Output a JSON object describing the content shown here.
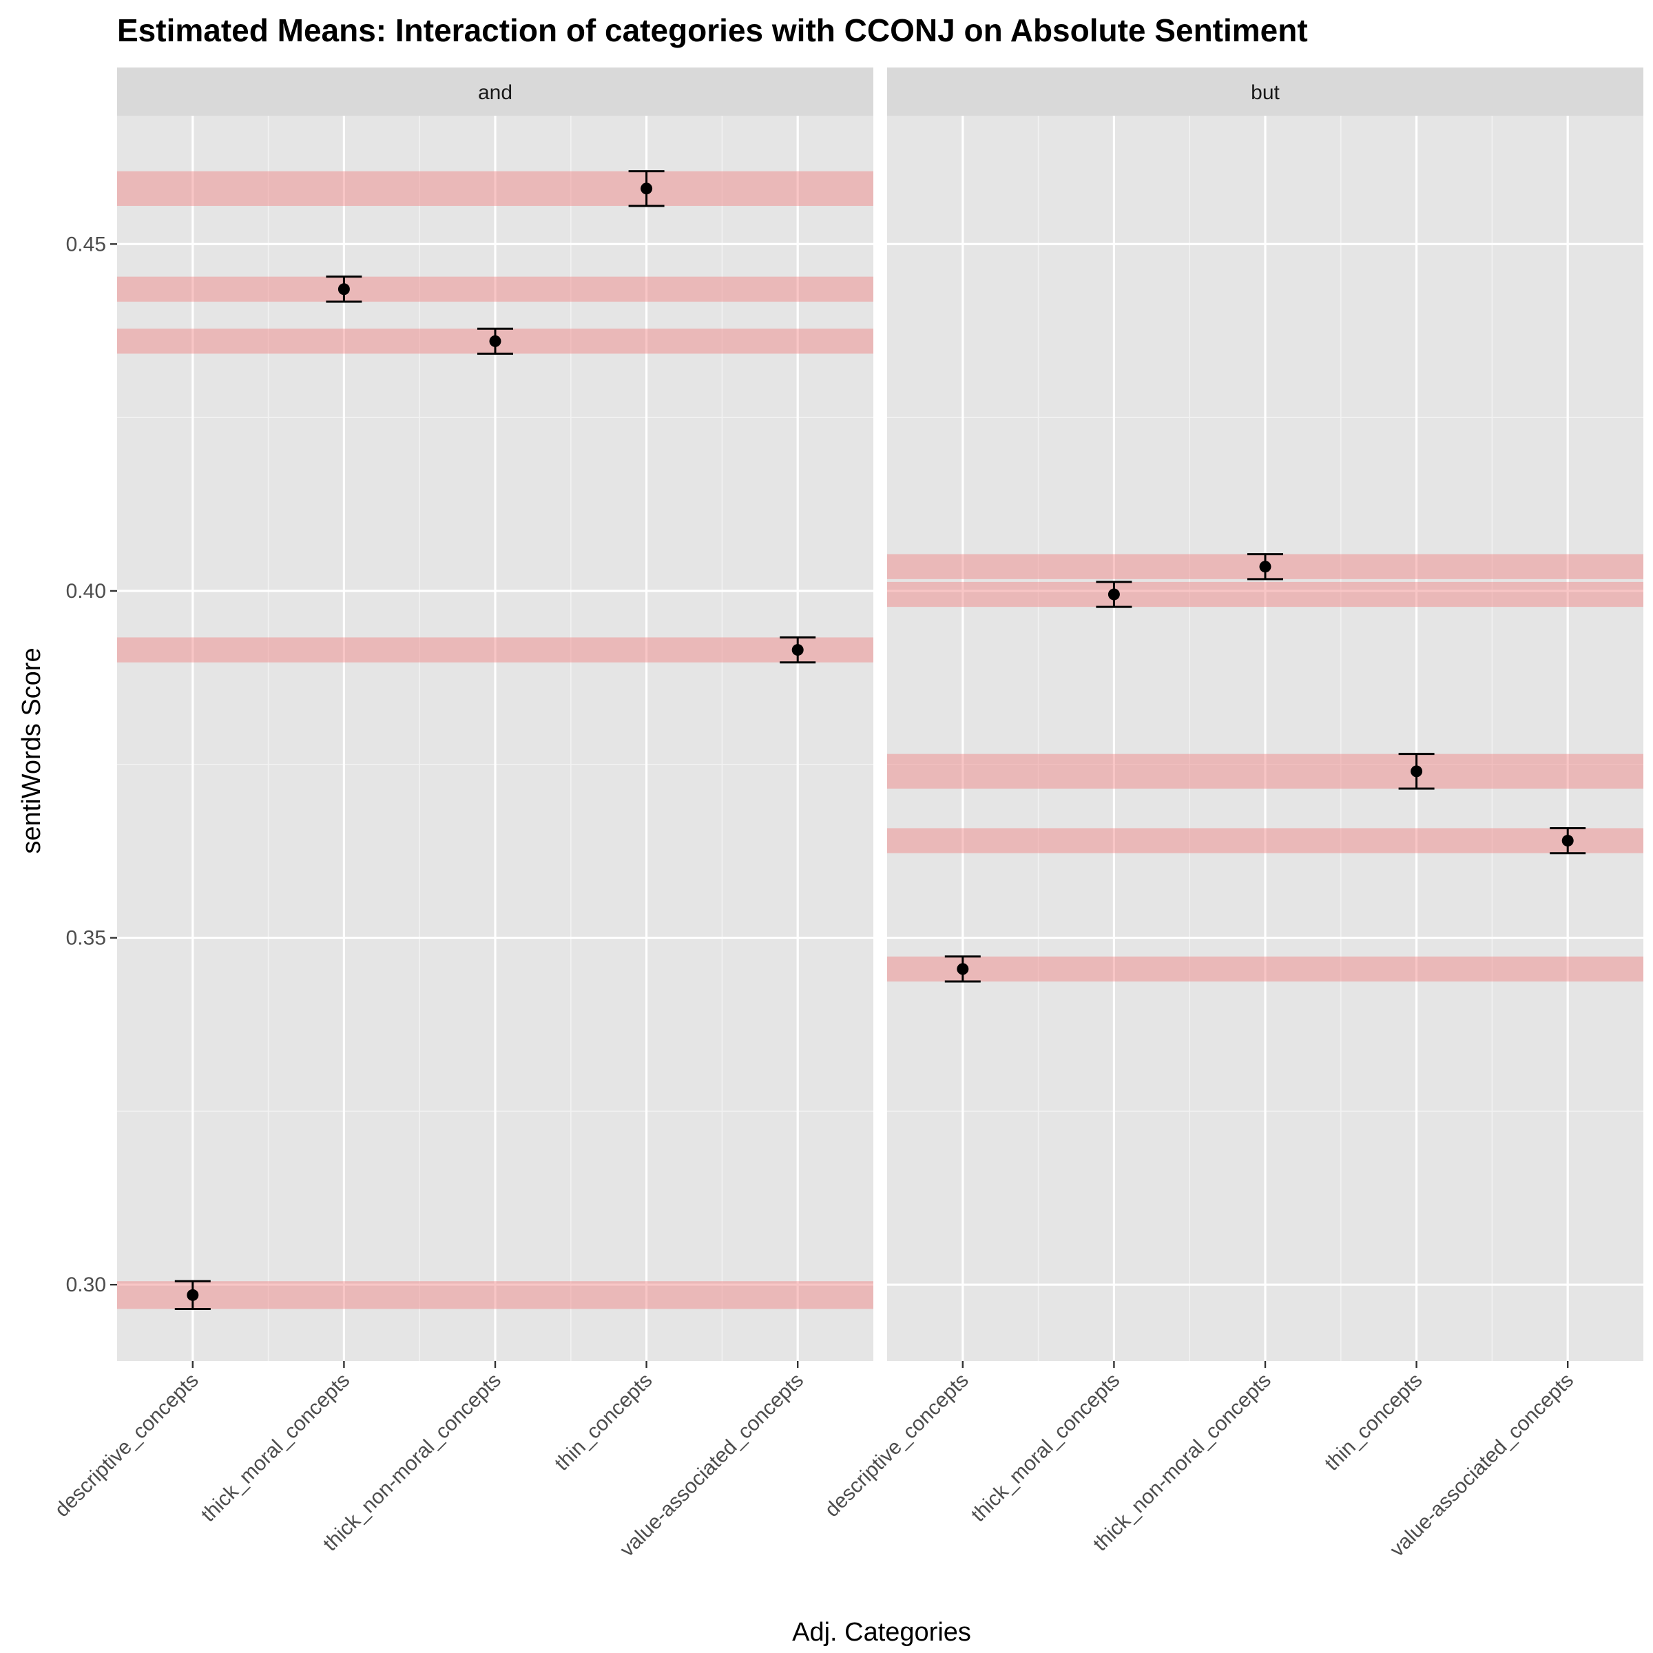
{
  "chart_data": {
    "type": "scatter",
    "title": "Estimated Means: Interaction of categories with CCONJ on Absolute Sentiment",
    "xlabel": "Adj. Categories",
    "ylabel": "sentiWords Score",
    "ylim": [
      0.289,
      0.4685
    ],
    "yticks": [
      0.3,
      0.35,
      0.4,
      0.45
    ],
    "ytick_labels": [
      "0.30",
      "0.35",
      "0.40",
      "0.45"
    ],
    "grid": true,
    "categories": [
      "descriptive_concepts",
      "thick_moral_concepts",
      "thick_non-moral_concepts",
      "thin_concepts",
      "value-associated_concepts"
    ],
    "band_color": "#f08080",
    "panel_background": "#e5e5e5",
    "strip_background": "#d9d9d9",
    "facets": [
      {
        "label": "and",
        "means": [
          0.2985,
          0.4435,
          0.436,
          0.458,
          0.3915
        ],
        "lower": [
          0.2965,
          0.4417,
          0.4342,
          0.4555,
          0.3897
        ],
        "upper": [
          0.3005,
          0.4453,
          0.4378,
          0.4605,
          0.3933
        ]
      },
      {
        "label": "but",
        "means": [
          0.3455,
          0.3995,
          0.4035,
          0.374,
          0.364
        ],
        "lower": [
          0.3437,
          0.3977,
          0.4017,
          0.3715,
          0.3622
        ],
        "upper": [
          0.3473,
          0.4013,
          0.4053,
          0.3765,
          0.3658
        ]
      }
    ]
  }
}
